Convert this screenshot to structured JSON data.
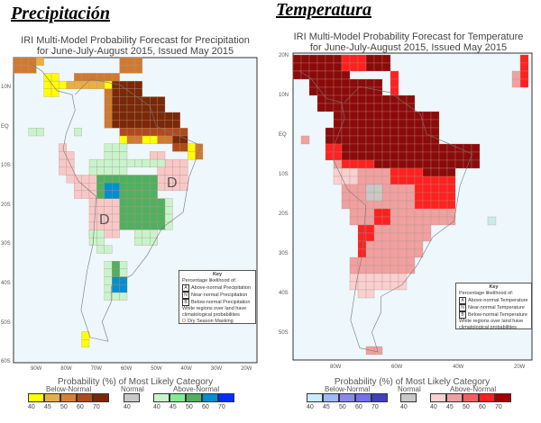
{
  "headings": {
    "precip": "Precipitación",
    "temp": "Temperatura"
  },
  "precip_map": {
    "title_line1": "IRI Multi-Model Probability Forecast for Precipitation",
    "title_line2": "for June-July-August 2015, Issued May 2015",
    "lat_labels": [
      "10N",
      "EQ",
      "10S",
      "20S",
      "30S",
      "40S",
      "50S",
      "60S"
    ],
    "lon_labels": [
      "90W",
      "80W",
      "70W",
      "60W",
      "50W",
      "40W",
      "30W",
      "20W"
    ],
    "dry_mark": "D",
    "key": {
      "title": "Key",
      "subtitle": "Percentage likelihood of:",
      "items": [
        {
          "letter": "A",
          "label": "Above-normal Precipitation"
        },
        {
          "letter": "N",
          "label": "Near-normal Precipitation"
        },
        {
          "letter": "B",
          "label": "Below-normal Precipitation"
        }
      ],
      "note": "White regions over land have climatological probabilities",
      "dry_letter": "D",
      "dry_label": "Dry Season Masking"
    },
    "legend": {
      "title": "Probability (%) of Most Likely Category",
      "below_label": "Below-Normal",
      "normal_label": "Normal",
      "above_label": "Above-Normal",
      "below_ticks": [
        "40",
        "45",
        "50",
        "60",
        "70"
      ],
      "normal_ticks": [
        "40"
      ],
      "above_ticks": [
        "40",
        "45",
        "50",
        "60",
        "70"
      ],
      "below_colors": [
        "#ffff00",
        "#e8b040",
        "#d88030",
        "#b04a1c",
        "#7a2808"
      ],
      "normal_color": "#c8c8c8",
      "above_colors": [
        "#c8f4cc",
        "#80ec90",
        "#50b060",
        "#0090d0",
        "#0030ff"
      ]
    }
  },
  "temp_map": {
    "title_line1": "IRI Multi-Model Probability Forecast for Temperature",
    "title_line2": "for June-July-August 2015, Issued May 2015",
    "lat_labels": [
      "20N",
      "10N",
      "EQ",
      "10S",
      "20S",
      "30S",
      "40S",
      "50S"
    ],
    "lon_labels": [
      "80W",
      "60W",
      "40W",
      "20W"
    ],
    "key": {
      "title": "Key",
      "subtitle": "Percentage likelihood of:",
      "items": [
        {
          "letter": "A",
          "label": "Above-normal Temperature"
        },
        {
          "letter": "N",
          "label": "Near-normal Temperature"
        },
        {
          "letter": "B",
          "label": "Below-normal Temperature"
        }
      ],
      "note": "White regions over land have climatological probabilities"
    },
    "legend": {
      "title": "Probability (%) of Most Likely Category",
      "below_label": "Below-Normal",
      "normal_label": "Normal",
      "above_label": "Above-Normal",
      "below_ticks": [
        "40",
        "45",
        "50",
        "60",
        "70"
      ],
      "normal_ticks": [
        "40"
      ],
      "above_ticks": [
        "40",
        "45",
        "50",
        "60",
        "70"
      ],
      "below_colors": [
        "#c8ecfc",
        "#a0b8f8",
        "#8888f0",
        "#7070f0",
        "#4040c0"
      ],
      "normal_color": "#c8c8c8",
      "above_colors": [
        "#f8d0d0",
        "#f0a0a0",
        "#f06060",
        "#ff2020",
        "#a00000"
      ]
    }
  }
}
